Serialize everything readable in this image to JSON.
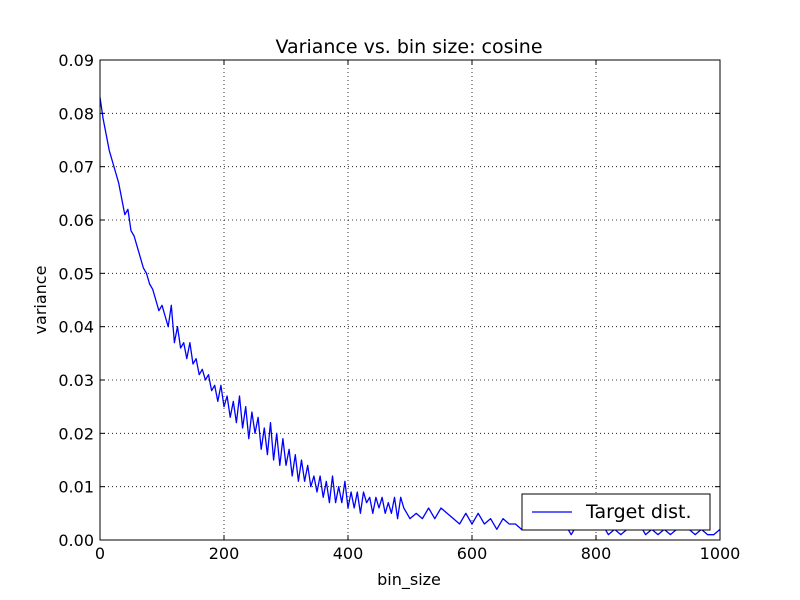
{
  "chart_data": {
    "type": "line",
    "title": "Variance vs. bin size: cosine",
    "xlabel": "bin_size",
    "ylabel": "variance",
    "xlim": [
      0,
      1000
    ],
    "ylim": [
      0,
      0.09
    ],
    "xticks": [
      0,
      200,
      400,
      600,
      800,
      1000
    ],
    "xtick_labels": [
      "0",
      "200",
      "400",
      "600",
      "800",
      "1000"
    ],
    "yticks": [
      0,
      0.01,
      0.02,
      0.03,
      0.04,
      0.05,
      0.06,
      0.07,
      0.08,
      0.09
    ],
    "ytick_labels": [
      "0.00",
      "0.01",
      "0.02",
      "0.03",
      "0.04",
      "0.05",
      "0.06",
      "0.07",
      "0.08",
      "0.09"
    ],
    "grid": true,
    "legend_position": "lower-right",
    "series": [
      {
        "name": "Target dist.",
        "color": "#0000ff",
        "x": [
          0,
          5,
          10,
          15,
          20,
          25,
          30,
          35,
          40,
          45,
          50,
          55,
          60,
          65,
          70,
          75,
          80,
          85,
          90,
          95,
          100,
          105,
          110,
          115,
          120,
          125,
          130,
          135,
          140,
          145,
          150,
          155,
          160,
          165,
          170,
          175,
          180,
          185,
          190,
          195,
          200,
          205,
          210,
          215,
          220,
          225,
          230,
          235,
          240,
          245,
          250,
          255,
          260,
          265,
          270,
          275,
          280,
          285,
          290,
          295,
          300,
          305,
          310,
          315,
          320,
          325,
          330,
          335,
          340,
          345,
          350,
          355,
          360,
          365,
          370,
          375,
          380,
          385,
          390,
          395,
          400,
          405,
          410,
          415,
          420,
          425,
          430,
          435,
          440,
          445,
          450,
          455,
          460,
          465,
          470,
          475,
          480,
          485,
          490,
          495,
          500,
          510,
          520,
          530,
          540,
          550,
          560,
          570,
          580,
          590,
          600,
          610,
          620,
          630,
          640,
          650,
          660,
          670,
          680,
          690,
          700,
          710,
          720,
          730,
          740,
          750,
          760,
          770,
          780,
          790,
          800,
          810,
          820,
          830,
          840,
          850,
          860,
          870,
          880,
          890,
          900,
          910,
          920,
          930,
          940,
          950,
          960,
          970,
          980,
          990,
          1000
        ],
        "y": [
          0.083,
          0.079,
          0.076,
          0.073,
          0.071,
          0.069,
          0.067,
          0.064,
          0.061,
          0.062,
          0.058,
          0.057,
          0.055,
          0.053,
          0.051,
          0.05,
          0.048,
          0.047,
          0.045,
          0.043,
          0.044,
          0.042,
          0.04,
          0.044,
          0.037,
          0.04,
          0.036,
          0.037,
          0.034,
          0.037,
          0.033,
          0.034,
          0.031,
          0.032,
          0.03,
          0.031,
          0.028,
          0.029,
          0.026,
          0.029,
          0.025,
          0.027,
          0.023,
          0.026,
          0.022,
          0.027,
          0.021,
          0.025,
          0.019,
          0.024,
          0.02,
          0.023,
          0.017,
          0.021,
          0.016,
          0.022,
          0.015,
          0.02,
          0.014,
          0.019,
          0.014,
          0.017,
          0.012,
          0.016,
          0.011,
          0.015,
          0.011,
          0.014,
          0.01,
          0.012,
          0.009,
          0.012,
          0.008,
          0.011,
          0.007,
          0.012,
          0.007,
          0.01,
          0.007,
          0.011,
          0.006,
          0.009,
          0.006,
          0.009,
          0.005,
          0.009,
          0.007,
          0.008,
          0.005,
          0.008,
          0.006,
          0.008,
          0.005,
          0.007,
          0.005,
          0.008,
          0.004,
          0.008,
          0.006,
          0.005,
          0.004,
          0.005,
          0.004,
          0.006,
          0.004,
          0.006,
          0.005,
          0.004,
          0.003,
          0.005,
          0.003,
          0.005,
          0.003,
          0.004,
          0.002,
          0.004,
          0.003,
          0.003,
          0.002,
          0.004,
          0.002,
          0.003,
          0.002,
          0.003,
          0.002,
          0.003,
          0.001,
          0.003,
          0.002,
          0.003,
          0.002,
          0.003,
          0.001,
          0.002,
          0.001,
          0.002,
          0.002,
          0.003,
          0.001,
          0.002,
          0.001,
          0.002,
          0.001,
          0.002,
          0.002,
          0.002,
          0.001,
          0.002,
          0.001,
          0.001,
          0.002
        ]
      }
    ]
  }
}
